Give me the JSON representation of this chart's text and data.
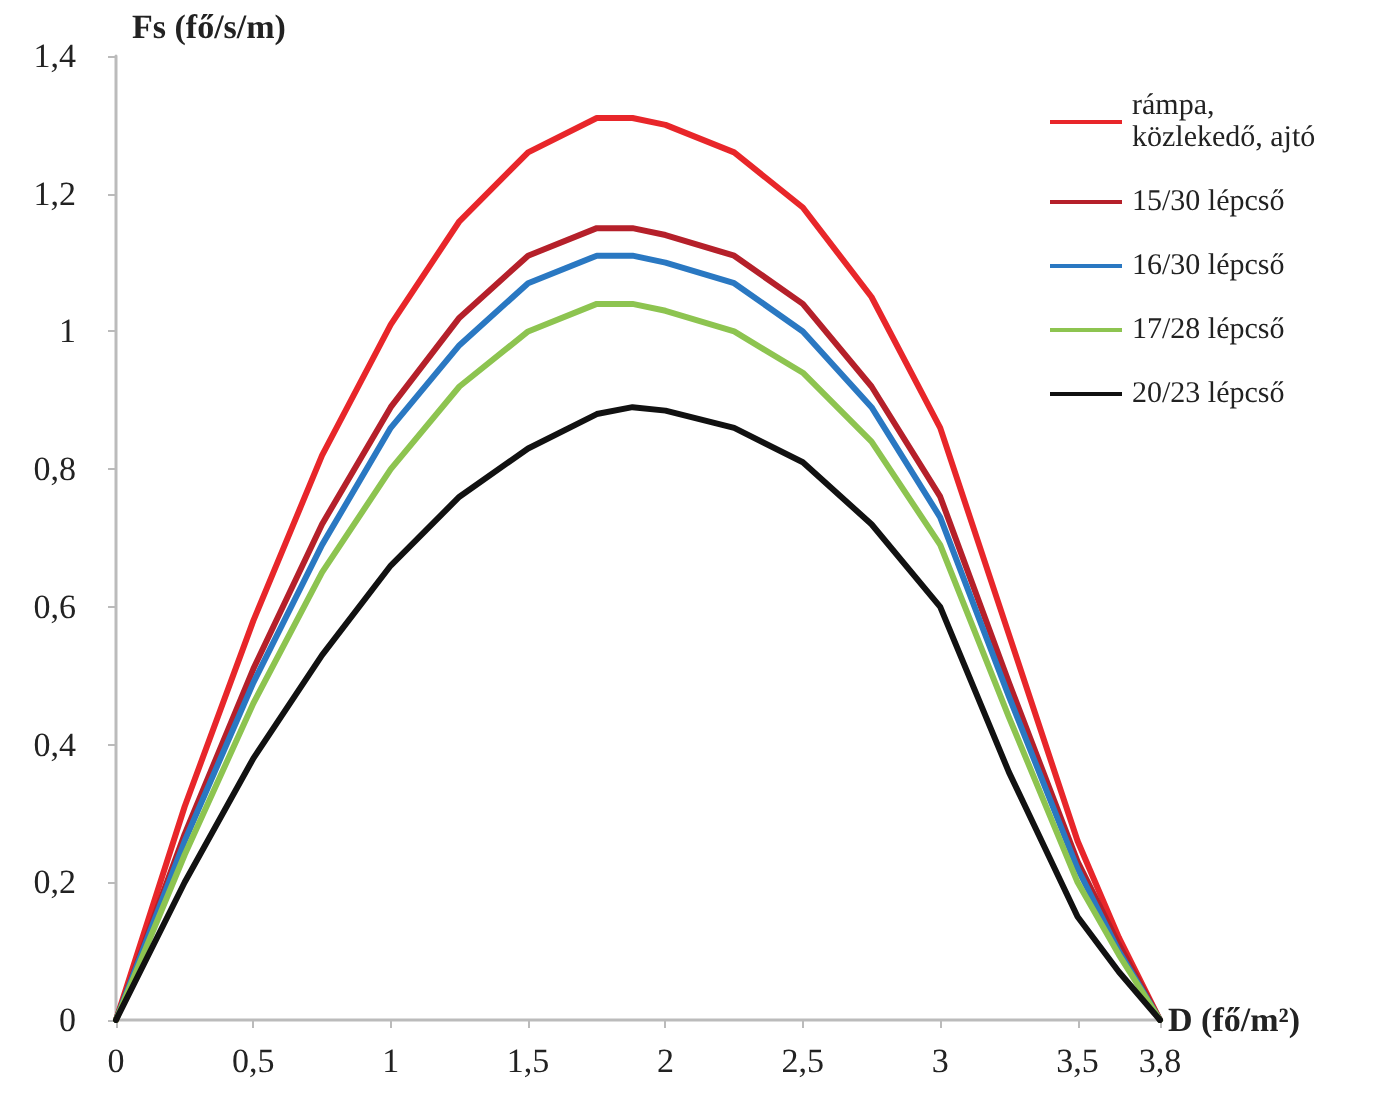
{
  "chart_data": {
    "type": "line",
    "xlabel": "D (fő/m²)",
    "ylabel": "Fs (fő/s/m)",
    "x": [
      0,
      0.25,
      0.5,
      0.75,
      1,
      1.25,
      1.5,
      1.75,
      1.88,
      2,
      2.25,
      2.5,
      2.75,
      3,
      3.25,
      3.5,
      3.65,
      3.8
    ],
    "series": [
      {
        "name": "rámpa, közlekedő, ajtó",
        "color": "#e8262a",
        "values": [
          0,
          0.31,
          0.58,
          0.82,
          1.01,
          1.16,
          1.26,
          1.31,
          1.31,
          1.3,
          1.26,
          1.18,
          1.05,
          0.86,
          0.56,
          0.26,
          0.12,
          0
        ]
      },
      {
        "name": "15/30 lépcső",
        "color": "#b5202a",
        "values": [
          0,
          0.27,
          0.51,
          0.72,
          0.89,
          1.02,
          1.11,
          1.15,
          1.15,
          1.14,
          1.11,
          1.04,
          0.92,
          0.76,
          0.49,
          0.23,
          0.11,
          0
        ]
      },
      {
        "name": "16/30 lépcső",
        "color": "#2a78c2",
        "values": [
          0,
          0.26,
          0.49,
          0.69,
          0.86,
          0.98,
          1.07,
          1.11,
          1.11,
          1.1,
          1.07,
          1,
          0.89,
          0.73,
          0.47,
          0.22,
          0.1,
          0
        ]
      },
      {
        "name": "17/28 lépcső",
        "color": "#8dc450",
        "values": [
          0,
          0.24,
          0.46,
          0.65,
          0.8,
          0.92,
          1,
          1.04,
          1.04,
          1.03,
          1,
          0.94,
          0.84,
          0.69,
          0.44,
          0.2,
          0.095,
          0
        ]
      },
      {
        "name": "20/23 lépcső",
        "color": "#111111",
        "values": [
          0,
          0.2,
          0.38,
          0.53,
          0.66,
          0.76,
          0.83,
          0.88,
          0.89,
          0.885,
          0.86,
          0.81,
          0.72,
          0.6,
          0.36,
          0.15,
          0.07,
          0
        ]
      }
    ],
    "xlim": [
      0,
      3.8
    ],
    "xticks": [
      0,
      {
        "value": 0.5,
        "label": "0,5"
      },
      1,
      {
        "value": 1.5,
        "label": "1,5"
      },
      2,
      {
        "value": 2.5,
        "label": "2,5"
      },
      3,
      {
        "value": 3.5,
        "label": "3,5"
      },
      {
        "value": 3.8,
        "label": "3,8"
      }
    ],
    "ylim": [
      0,
      1.4
    ],
    "yticks": [
      0,
      {
        "value": 0.2,
        "label": "0,2"
      },
      {
        "value": 0.4,
        "label": "0,4"
      },
      {
        "value": 0.6,
        "label": "0,6"
      },
      {
        "value": 0.8,
        "label": "0,8"
      },
      1,
      {
        "value": 1.2,
        "label": "1,2"
      },
      {
        "value": 1.4,
        "label": "1,4"
      }
    ],
    "grid": false,
    "legend": "top right",
    "marker": "none",
    "line_style": "solid"
  }
}
